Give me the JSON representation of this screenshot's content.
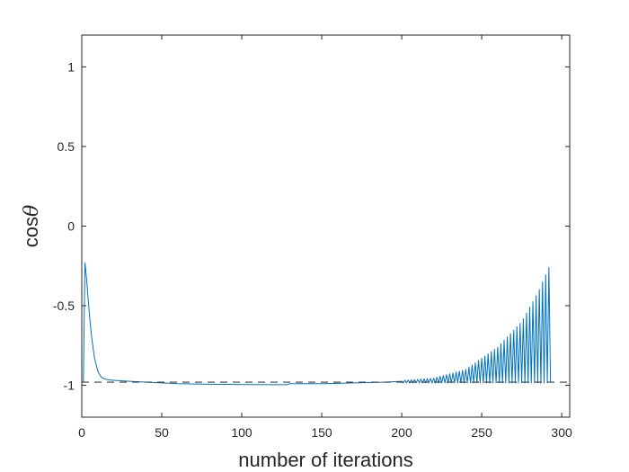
{
  "chart_data": {
    "type": "line",
    "title": "",
    "xlabel": "number of iterations",
    "ylabel": {
      "prefix": "cos",
      "symbol": "θ"
    },
    "xlim": [
      0,
      305
    ],
    "ylim": [
      -1.2,
      1.2
    ],
    "xticks": [
      0,
      50,
      100,
      150,
      200,
      250,
      300
    ],
    "xtick_labels": [
      "0",
      "50",
      "100",
      "150",
      "200",
      "250",
      "300"
    ],
    "yticks": [
      -1,
      -0.5,
      0,
      0.5,
      1
    ],
    "ytick_labels": [
      "-1",
      "-0.5",
      "0",
      "0.5",
      "1"
    ],
    "grid": false,
    "line_color": "#0072BD",
    "reference_line": {
      "y": -0.98,
      "style": "dashed",
      "color": "#404040"
    },
    "series": [
      {
        "x": [
          1,
          2,
          3,
          4,
          5,
          6,
          7,
          8,
          9,
          10,
          11,
          12,
          13,
          15,
          18,
          22,
          30,
          40,
          50,
          60,
          80,
          100,
          128,
          130,
          150,
          170,
          190,
          200
        ],
        "y": [
          -0.98,
          -0.23,
          -0.33,
          -0.46,
          -0.58,
          -0.68,
          -0.76,
          -0.83,
          -0.87,
          -0.91,
          -0.93,
          -0.945,
          -0.955,
          -0.962,
          -0.967,
          -0.97,
          -0.975,
          -0.98,
          -0.985,
          -0.99,
          -0.993,
          -0.995,
          -0.996,
          -0.99,
          -0.99,
          -0.985,
          -0.98,
          -0.975
        ],
        "oscillation": {
          "x_start": 200,
          "x_end": 292,
          "period": 2,
          "low": -0.985,
          "peaks": [
            {
              "x": 200,
              "y": -0.97
            },
            {
              "x": 220,
              "y": -0.955
            },
            {
              "x": 240,
              "y": -0.9
            },
            {
              "x": 260,
              "y": -0.76
            },
            {
              "x": 275,
              "y": -0.6
            },
            {
              "x": 285,
              "y": -0.42
            },
            {
              "x": 292,
              "y": -0.26
            }
          ]
        },
        "end": {
          "x": 293,
          "y": -0.98
        }
      }
    ]
  }
}
